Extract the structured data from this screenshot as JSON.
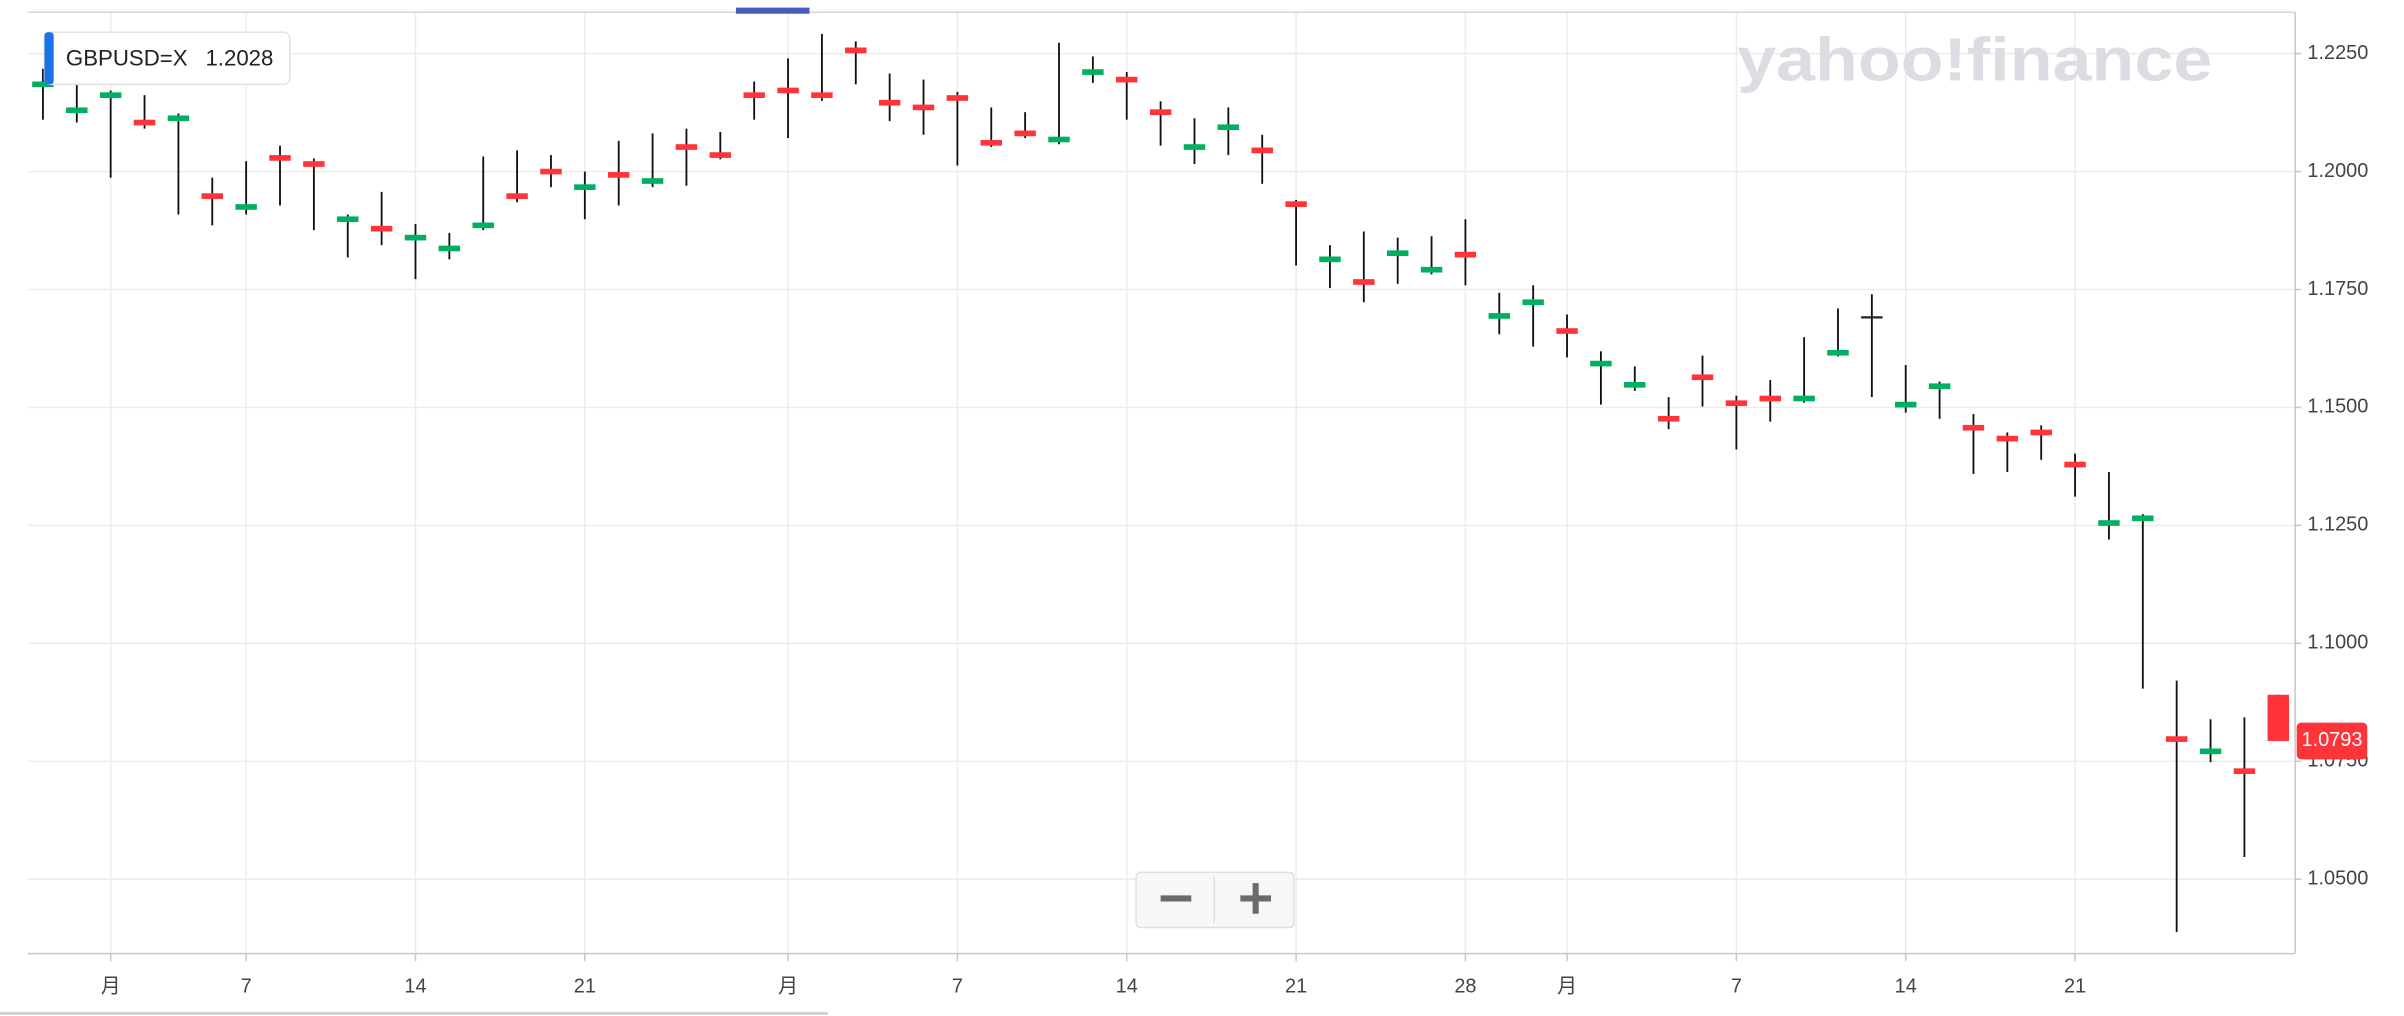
{
  "chart_data": {
    "type": "candlestick",
    "watermark": "yahoo!finance",
    "legend_value": 1.2028,
    "categories": [
      null,
      null,
      "月",
      null,
      null,
      null,
      "7",
      null,
      null,
      null,
      null,
      "14",
      null,
      null,
      null,
      null,
      "21",
      null,
      null,
      null,
      null,
      null,
      "月",
      null,
      null,
      null,
      null,
      "7",
      null,
      null,
      null,
      null,
      "14",
      null,
      null,
      null,
      null,
      "21",
      null,
      null,
      null,
      null,
      "28",
      null,
      null,
      "月",
      null,
      null,
      null,
      null,
      "7",
      null,
      null,
      null,
      null,
      "14",
      null,
      null,
      null,
      null,
      "21",
      null,
      null,
      null,
      null,
      null,
      null
    ],
    "series": [
      {
        "name": "GBPUSD=X",
        "open": [
          1.2179,
          1.2124,
          1.2156,
          1.211,
          1.2107,
          1.1954,
          1.1919,
          1.2035,
          1.2022,
          1.1893,
          1.1885,
          1.1854,
          1.1831,
          1.188,
          1.1954,
          1.2006,
          1.1961,
          1.1999,
          1.1974,
          1.2058,
          1.2041,
          1.2168,
          1.2178,
          1.2168,
          1.2263,
          1.2152,
          1.2142,
          1.2162,
          1.2067,
          1.2087,
          1.2062,
          1.2205,
          1.2201,
          1.2132,
          1.2046,
          1.2088,
          1.2051,
          1.1937,
          1.1808,
          1.1772,
          1.1821,
          1.1786,
          1.183,
          1.1688,
          1.1717,
          1.1668,
          1.1587,
          1.1542,
          1.1482,
          1.157,
          1.1515,
          1.1525,
          1.1513,
          1.161,
          1.1691,
          1.15,
          1.1539,
          1.1463,
          1.144,
          1.1453,
          1.1385,
          1.1249,
          1.1259,
          1.0803,
          1.0765,
          1.0735,
          1.0891
        ],
        "high": [
          1.2218,
          1.2185,
          1.2172,
          1.2162,
          1.2123,
          1.1987,
          1.2022,
          1.2055,
          1.2028,
          1.1909,
          1.1957,
          1.1889,
          1.187,
          1.2032,
          1.2045,
          1.2035,
          1.2,
          1.2065,
          1.2081,
          1.2091,
          1.2084,
          1.2191,
          1.224,
          1.2292,
          1.2276,
          1.2208,
          1.2195,
          1.2169,
          1.2136,
          1.2126,
          1.2273,
          1.2244,
          1.2211,
          1.2149,
          1.2113,
          1.2136,
          1.2078,
          1.194,
          1.1844,
          1.1873,
          1.186,
          1.1863,
          1.1899,
          1.1743,
          1.1759,
          1.1697,
          1.1619,
          1.1587,
          1.1522,
          1.161,
          1.1525,
          1.1558,
          1.1649,
          1.171,
          1.174,
          1.159,
          1.1555,
          1.1486,
          1.1447,
          1.1462,
          1.1402,
          1.1363,
          1.1274,
          1.0921,
          1.0839,
          1.0843,
          1.0891
        ],
        "low": [
          1.211,
          1.2104,
          1.1987,
          1.2091,
          1.1909,
          1.1886,
          1.1909,
          1.1928,
          1.1876,
          1.1818,
          1.1844,
          1.1772,
          1.1814,
          1.1876,
          1.1935,
          1.1967,
          1.1899,
          1.1928,
          1.1967,
          1.197,
          1.2026,
          1.211,
          1.2071,
          1.215,
          1.2185,
          1.2107,
          1.2078,
          1.2013,
          1.2052,
          1.2071,
          1.2058,
          1.2188,
          1.211,
          1.2055,
          1.2016,
          1.2035,
          1.1974,
          1.1801,
          1.1753,
          1.1723,
          1.1762,
          1.1782,
          1.1759,
          1.1655,
          1.1629,
          1.1606,
          1.1506,
          1.1535,
          1.1454,
          1.1502,
          1.1411,
          1.147,
          1.151,
          1.1608,
          1.1522,
          1.1489,
          1.1476,
          1.1359,
          1.1363,
          1.1389,
          1.1311,
          1.122,
          1.0904,
          1.0388,
          1.0748,
          1.0547,
          1.0793
        ],
        "close": [
          1.2191,
          1.2136,
          1.2168,
          1.2098,
          1.2119,
          1.1942,
          1.1931,
          1.2023,
          1.201,
          1.1905,
          1.1873,
          1.1866,
          1.1843,
          1.1892,
          1.1942,
          1.1994,
          1.1973,
          1.1987,
          1.1986,
          1.2046,
          1.2029,
          1.2156,
          1.2166,
          1.2156,
          1.2251,
          1.214,
          1.213,
          1.215,
          1.2055,
          1.2075,
          1.2074,
          1.2217,
          1.2189,
          1.212,
          1.2058,
          1.21,
          1.2039,
          1.1925,
          1.182,
          1.176,
          1.1833,
          1.1798,
          1.1818,
          1.17,
          1.1729,
          1.1656,
          1.1599,
          1.1554,
          1.147,
          1.1558,
          1.1503,
          1.1513,
          1.1525,
          1.1622,
          1.1691,
          1.1512,
          1.1551,
          1.1451,
          1.1428,
          1.1441,
          1.1373,
          1.1261,
          1.1271,
          1.0791,
          1.0777,
          1.0723,
          1.0793
        ]
      }
    ],
    "up_color": "#00b061",
    "down_color": "#ff333a",
    "doji_color": "#222222",
    "ylim": [
      1.034,
      1.234
    ],
    "yticks": [
      {
        "value": 1.05,
        "label": "1.0500"
      },
      {
        "value": 1.075,
        "label": "1.0750"
      },
      {
        "value": 1.1,
        "label": "1.1000"
      },
      {
        "value": 1.125,
        "label": "1.1250"
      },
      {
        "value": 1.15,
        "label": "1.1500"
      },
      {
        "value": 1.175,
        "label": "1.1750"
      },
      {
        "value": 1.2,
        "label": "1.2000"
      },
      {
        "value": 1.225,
        "label": "1.2250"
      }
    ],
    "grid": true
  }
}
